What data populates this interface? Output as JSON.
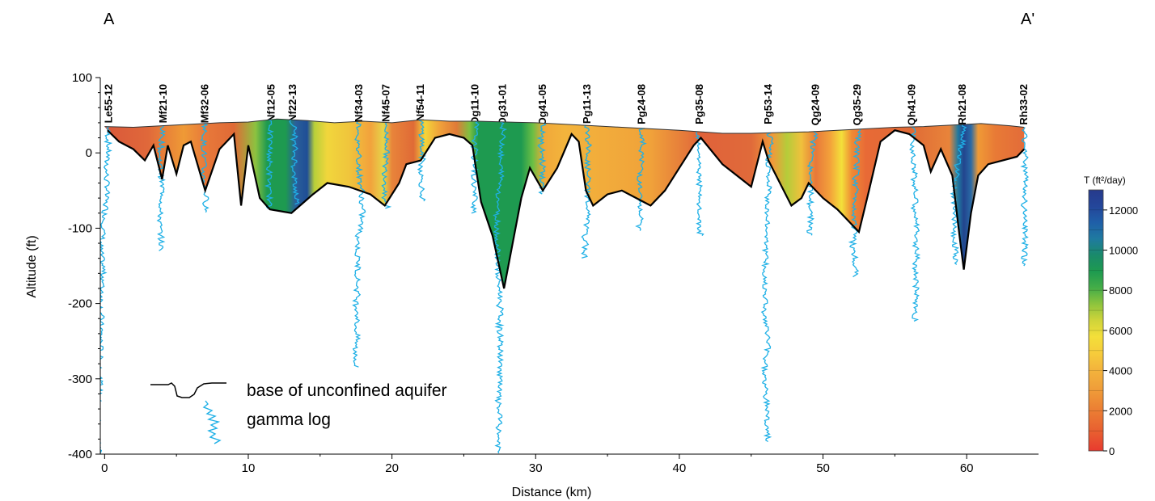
{
  "chart_data": {
    "type": "cross-section",
    "xlabel": "Distance (km)",
    "ylabel": "Altitude (ft)",
    "xlim": [
      -0.3,
      65
    ],
    "ylim": [
      -400,
      100
    ],
    "x_ticks": [
      "0",
      "10",
      "20",
      "30",
      "40",
      "50",
      "60"
    ],
    "y_ticks": [
      "100",
      "0",
      "-100",
      "-200",
      "-300",
      "-400"
    ],
    "section_start": "A",
    "section_end": "A'",
    "wells": [
      {
        "name": "Le55-12",
        "x": 0.3
      },
      {
        "name": "Mf21-10",
        "x": 4.1
      },
      {
        "name": "Mf32-06",
        "x": 7.0
      },
      {
        "name": "Nf12-05",
        "x": 11.6
      },
      {
        "name": "Nf22-13",
        "x": 13.1
      },
      {
        "name": "Nf34-03",
        "x": 17.7
      },
      {
        "name": "Nf45-07",
        "x": 19.6
      },
      {
        "name": "Nf54-11",
        "x": 22.0
      },
      {
        "name": "Og11-10",
        "x": 25.8
      },
      {
        "name": "Og31-01",
        "x": 27.7
      },
      {
        "name": "Og41-05",
        "x": 30.5
      },
      {
        "name": "Pg11-13",
        "x": 33.6
      },
      {
        "name": "Pg24-08",
        "x": 37.4
      },
      {
        "name": "Pg35-08",
        "x": 41.4
      },
      {
        "name": "Pg53-14",
        "x": 46.2
      },
      {
        "name": "Qg24-09",
        "x": 49.5
      },
      {
        "name": "Qg35-29",
        "x": 52.4
      },
      {
        "name": "Qh41-09",
        "x": 56.2
      },
      {
        "name": "Rh21-08",
        "x": 59.7
      },
      {
        "name": "Rh33-02",
        "x": 64.0
      }
    ],
    "land_surface": [
      [
        0,
        35
      ],
      [
        2,
        34
      ],
      [
        4,
        36
      ],
      [
        6,
        38
      ],
      [
        8,
        40
      ],
      [
        10,
        41
      ],
      [
        12,
        45
      ],
      [
        14,
        43
      ],
      [
        16,
        40
      ],
      [
        18,
        42
      ],
      [
        20,
        40
      ],
      [
        22,
        44
      ],
      [
        24,
        42
      ],
      [
        26,
        42
      ],
      [
        28,
        41
      ],
      [
        30,
        40
      ],
      [
        32,
        38
      ],
      [
        34,
        36
      ],
      [
        36,
        34
      ],
      [
        38,
        32
      ],
      [
        40,
        30
      ],
      [
        41.5,
        28
      ],
      [
        43,
        26
      ],
      [
        45,
        26
      ],
      [
        47,
        27
      ],
      [
        49,
        28
      ],
      [
        51,
        30
      ],
      [
        53,
        32
      ],
      [
        55,
        34
      ],
      [
        57,
        35
      ],
      [
        59,
        37
      ],
      [
        61,
        39
      ],
      [
        63,
        36
      ],
      [
        64,
        34
      ]
    ],
    "aquifer_base": [
      [
        0.2,
        30
      ],
      [
        1,
        15
      ],
      [
        2,
        5
      ],
      [
        2.8,
        -10
      ],
      [
        3.4,
        10
      ],
      [
        4,
        -35
      ],
      [
        4.4,
        10
      ],
      [
        5,
        -28
      ],
      [
        5.5,
        10
      ],
      [
        6,
        15
      ],
      [
        7,
        -50
      ],
      [
        8,
        5
      ],
      [
        9,
        25
      ],
      [
        9.5,
        -70
      ],
      [
        10,
        10
      ],
      [
        10.8,
        -60
      ],
      [
        11.5,
        -75
      ],
      [
        13,
        -80
      ],
      [
        14.5,
        -55
      ],
      [
        15.5,
        -40
      ],
      [
        17,
        -45
      ],
      [
        18.5,
        -55
      ],
      [
        19.5,
        -70
      ],
      [
        20.5,
        -40
      ],
      [
        21,
        -15
      ],
      [
        22,
        -10
      ],
      [
        23,
        20
      ],
      [
        24,
        25
      ],
      [
        25,
        20
      ],
      [
        25.6,
        10
      ],
      [
        26.2,
        -65
      ],
      [
        27,
        -110
      ],
      [
        27.8,
        -180
      ],
      [
        28.5,
        -110
      ],
      [
        29,
        -60
      ],
      [
        29.6,
        -20
      ],
      [
        30.5,
        -50
      ],
      [
        31.5,
        -20
      ],
      [
        32.5,
        25
      ],
      [
        33,
        15
      ],
      [
        33.5,
        -50
      ],
      [
        34,
        -70
      ],
      [
        35,
        -55
      ],
      [
        36,
        -50
      ],
      [
        37,
        -60
      ],
      [
        38,
        -70
      ],
      [
        39,
        -50
      ],
      [
        40,
        -20
      ],
      [
        41,
        10
      ],
      [
        41.5,
        20
      ],
      [
        43,
        -15
      ],
      [
        44,
        -30
      ],
      [
        45,
        -45
      ],
      [
        45.8,
        15
      ],
      [
        46.2,
        -10
      ],
      [
        47,
        -40
      ],
      [
        47.8,
        -70
      ],
      [
        48.5,
        -60
      ],
      [
        49,
        -40
      ],
      [
        50,
        -60
      ],
      [
        51,
        -75
      ],
      [
        52,
        -95
      ],
      [
        52.5,
        -105
      ],
      [
        53.2,
        -50
      ],
      [
        54,
        15
      ],
      [
        55,
        30
      ],
      [
        56,
        25
      ],
      [
        57,
        10
      ],
      [
        57.5,
        -25
      ],
      [
        58.2,
        5
      ],
      [
        59,
        -30
      ],
      [
        59.5,
        -110
      ],
      [
        59.8,
        -155
      ],
      [
        60.3,
        -80
      ],
      [
        60.8,
        -30
      ],
      [
        61.5,
        -15
      ],
      [
        62.5,
        -10
      ],
      [
        63.5,
        -5
      ],
      [
        64,
        5
      ]
    ],
    "transmissivity_colorbar": {
      "title": "T (ft²/day)",
      "ticks": [
        "0",
        "2000",
        "4000",
        "6000",
        "8000",
        "10000",
        "12000"
      ],
      "min": 0,
      "max": 13000,
      "colors": [
        "#e83a2f",
        "#e85a30",
        "#ea7232",
        "#ed8a35",
        "#f0a23a",
        "#f3b43c",
        "#f6cc3b",
        "#f4df3a",
        "#cfd43a",
        "#8ec43d",
        "#44ad48",
        "#1e9a50",
        "#1a8a6a",
        "#1f7aa0",
        "#1f5fa8",
        "#24469a",
        "#263a8c"
      ]
    },
    "legend": [
      {
        "label": "base of unconfined aquifer",
        "color": "#000000"
      },
      {
        "label": "gamma log",
        "color": "#1fb0e6"
      }
    ],
    "colors": {
      "gamma_log": "#1fb0e6",
      "aquifer_base": "#000000"
    }
  }
}
